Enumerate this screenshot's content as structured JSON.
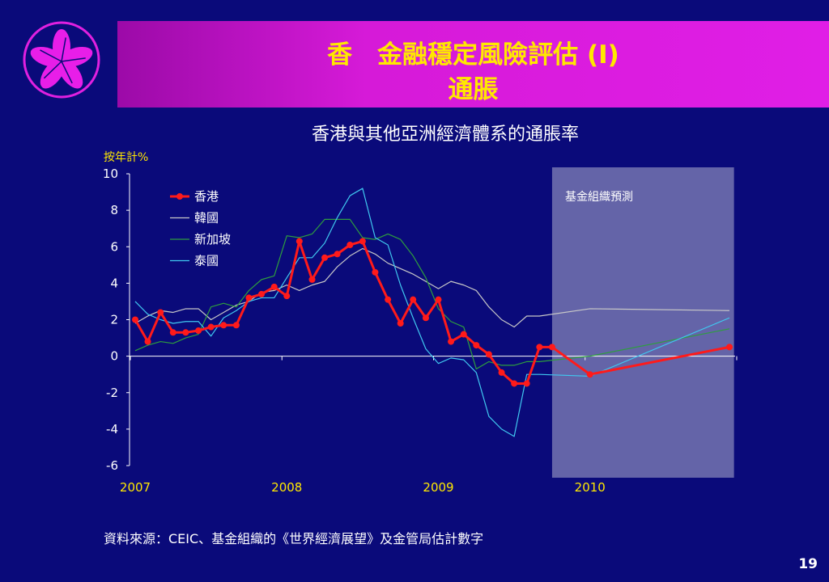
{
  "slide": {
    "title_line1": "香　金融穩定風險評估 (I)",
    "title_line2": "通脹",
    "source": "資料來源：CEIC、基金組織的《世界經濟展望》及金管局估計數字",
    "page_number": "19"
  },
  "colors": {
    "background": "#0a0a7a",
    "title_bar": "#d61ad8",
    "title_text": "#ffe800",
    "forecast_region": "#6464a8"
  },
  "chart_data": {
    "type": "line",
    "title": "香港與其他亞洲經濟體系的通脹率",
    "ylabel": "按年計%",
    "ylim": [
      -6,
      10
    ],
    "yticks": [
      10,
      8,
      6,
      4,
      2,
      0,
      -2,
      -4,
      -6
    ],
    "xlim": [
      2007.0,
      2011.0
    ],
    "xticks": [
      "2007",
      "2008",
      "2009",
      "2010"
    ],
    "forecast_label": "基金組織預測",
    "forecast_range": [
      2009.75,
      2010.95
    ],
    "grid": false,
    "legend_position": "upper-left",
    "series": [
      {
        "name": "香港",
        "color": "#ff1a1a",
        "markers": true,
        "x": [
          2007.0,
          2007.083,
          2007.167,
          2007.25,
          2007.333,
          2007.417,
          2007.5,
          2007.583,
          2007.667,
          2007.75,
          2007.833,
          2007.917,
          2008.0,
          2008.083,
          2008.167,
          2008.25,
          2008.333,
          2008.417,
          2008.5,
          2008.583,
          2008.667,
          2008.75,
          2008.833,
          2008.917,
          2009.0,
          2009.083,
          2009.167,
          2009.25,
          2009.333,
          2009.417,
          2009.5,
          2009.583,
          2009.667,
          2009.75,
          2010.0,
          2010.92
        ],
        "y": [
          2.0,
          0.8,
          2.4,
          1.3,
          1.3,
          1.4,
          1.6,
          1.7,
          1.7,
          3.2,
          3.4,
          3.8,
          3.3,
          6.3,
          4.2,
          5.4,
          5.6,
          6.1,
          6.3,
          4.6,
          3.1,
          1.8,
          3.1,
          2.1,
          3.1,
          0.8,
          1.2,
          0.6,
          0.1,
          -0.9,
          -1.5,
          -1.5,
          0.5,
          0.5,
          -1.0,
          0.5
        ]
      },
      {
        "name": "韓國",
        "color": "#c8c8c8",
        "markers": false,
        "x": [
          2007.0,
          2007.083,
          2007.167,
          2007.25,
          2007.333,
          2007.417,
          2007.5,
          2007.583,
          2007.667,
          2007.75,
          2007.833,
          2007.917,
          2008.0,
          2008.083,
          2008.167,
          2008.25,
          2008.333,
          2008.417,
          2008.5,
          2008.583,
          2008.667,
          2008.75,
          2008.833,
          2008.917,
          2009.0,
          2009.083,
          2009.167,
          2009.25,
          2009.333,
          2009.417,
          2009.5,
          2009.583,
          2009.667,
          2010.0,
          2010.92
        ],
        "y": [
          1.8,
          2.2,
          2.5,
          2.4,
          2.6,
          2.6,
          2.0,
          2.4,
          2.8,
          3.0,
          3.5,
          3.6,
          3.9,
          3.6,
          3.9,
          4.1,
          4.9,
          5.5,
          5.9,
          5.6,
          5.1,
          4.8,
          4.5,
          4.1,
          3.7,
          4.1,
          3.9,
          3.6,
          2.7,
          2.0,
          1.6,
          2.2,
          2.2,
          2.6,
          2.5
        ]
      },
      {
        "name": "新加坡",
        "color": "#2e9e3e",
        "markers": false,
        "x": [
          2007.0,
          2007.083,
          2007.167,
          2007.25,
          2007.333,
          2007.417,
          2007.5,
          2007.583,
          2007.667,
          2007.75,
          2007.833,
          2007.917,
          2008.0,
          2008.083,
          2008.167,
          2008.25,
          2008.333,
          2008.417,
          2008.5,
          2008.583,
          2008.667,
          2008.75,
          2008.833,
          2008.917,
          2009.0,
          2009.083,
          2009.167,
          2009.25,
          2009.333,
          2009.417,
          2009.5,
          2009.583,
          2009.667,
          2010.0,
          2010.92
        ],
        "y": [
          0.3,
          0.6,
          0.8,
          0.7,
          1.0,
          1.2,
          2.7,
          2.9,
          2.7,
          3.6,
          4.2,
          4.4,
          6.6,
          6.5,
          6.7,
          7.5,
          7.5,
          7.5,
          6.5,
          6.4,
          6.7,
          6.4,
          5.5,
          4.3,
          2.6,
          1.9,
          1.6,
          -0.7,
          -0.3,
          -0.5,
          -0.5,
          -0.3,
          -0.3,
          0.0,
          1.5
        ]
      },
      {
        "name": "泰國",
        "color": "#40c8f0",
        "markers": false,
        "x": [
          2007.0,
          2007.083,
          2007.167,
          2007.25,
          2007.333,
          2007.417,
          2007.5,
          2007.583,
          2007.667,
          2007.75,
          2007.833,
          2007.917,
          2008.0,
          2008.083,
          2008.167,
          2008.25,
          2008.333,
          2008.417,
          2008.5,
          2008.583,
          2008.667,
          2008.75,
          2008.833,
          2008.917,
          2009.0,
          2009.083,
          2009.167,
          2009.25,
          2009.333,
          2009.417,
          2009.5,
          2009.583,
          2009.667,
          2010.0,
          2010.92
        ],
        "y": [
          3.0,
          2.3,
          2.0,
          1.8,
          1.9,
          1.9,
          1.1,
          2.1,
          2.5,
          3.0,
          3.2,
          3.2,
          4.3,
          5.4,
          5.4,
          6.2,
          7.6,
          8.8,
          9.2,
          6.5,
          6.1,
          3.9,
          2.1,
          0.4,
          -0.4,
          -0.1,
          -0.2,
          -0.9,
          -3.3,
          -4.0,
          -4.4,
          -1.0,
          -1.0,
          -1.1,
          2.1
        ]
      }
    ]
  }
}
